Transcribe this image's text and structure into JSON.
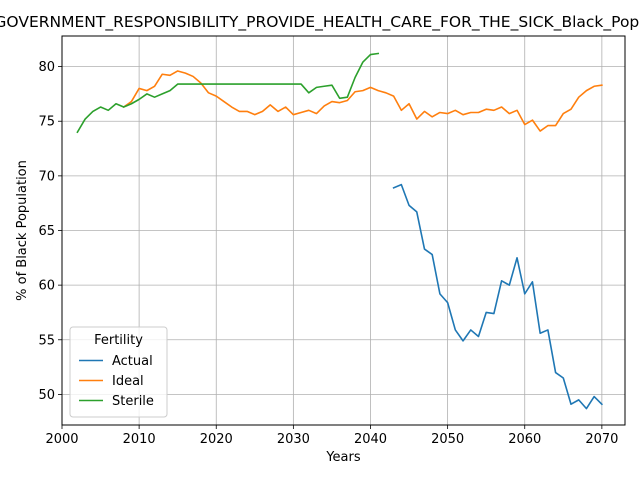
{
  "chart_data": {
    "type": "line",
    "title": "GOVERNMENT_RESPONSIBILITY_PROVIDE_HEALTH_CARE_FOR_THE_SICK_Black_Population",
    "xlabel": "Years",
    "ylabel": "% of Black Population",
    "xlim": [
      2000,
      2073
    ],
    "ylim": [
      47.2,
      82.8
    ],
    "xticks": [
      2000,
      2010,
      2020,
      2030,
      2040,
      2050,
      2060,
      2070
    ],
    "yticks": [
      50,
      55,
      60,
      65,
      70,
      75,
      80
    ],
    "grid": true,
    "legend": {
      "title": "Fertility",
      "placement": "lower-left"
    },
    "series": [
      {
        "name": "Actual",
        "color": "#1f77b4",
        "x": [
          2043,
          2044,
          2045,
          2046,
          2047,
          2048,
          2049,
          2050,
          2051,
          2052,
          2053,
          2054,
          2055,
          2056,
          2057,
          2058,
          2059,
          2060,
          2061,
          2062,
          2063,
          2064,
          2065,
          2066,
          2067,
          2068,
          2069,
          2070
        ],
        "y": [
          68.9,
          69.2,
          67.3,
          66.7,
          63.3,
          62.8,
          59.2,
          58.4,
          55.9,
          54.9,
          55.9,
          55.3,
          57.5,
          57.4,
          60.4,
          60.0,
          62.5,
          59.2,
          60.3,
          55.6,
          55.9,
          52.0,
          51.5,
          49.1,
          49.5,
          48.7,
          49.8,
          49.1
        ]
      },
      {
        "name": "Ideal",
        "color": "#ff7f0e",
        "x": [
          2008,
          2009,
          2010,
          2011,
          2012,
          2013,
          2014,
          2015,
          2016,
          2017,
          2018,
          2019,
          2020,
          2021,
          2022,
          2023,
          2024,
          2025,
          2026,
          2027,
          2028,
          2029,
          2030,
          2031,
          2032,
          2033,
          2034,
          2035,
          2036,
          2037,
          2038,
          2039,
          2040,
          2041,
          2042,
          2043,
          2044,
          2045,
          2046,
          2047,
          2048,
          2049,
          2050,
          2051,
          2052,
          2053,
          2054,
          2055,
          2056,
          2057,
          2058,
          2059,
          2060,
          2061,
          2062,
          2063,
          2064,
          2065,
          2066,
          2067,
          2068,
          2069,
          2070
        ],
        "y": [
          76.3,
          76.8,
          78.0,
          77.8,
          78.2,
          79.3,
          79.2,
          79.6,
          79.4,
          79.1,
          78.5,
          77.6,
          77.3,
          76.8,
          76.3,
          75.9,
          75.9,
          75.6,
          75.9,
          76.5,
          75.9,
          76.3,
          75.6,
          75.8,
          76.0,
          75.7,
          76.4,
          76.8,
          76.7,
          76.9,
          77.7,
          77.8,
          78.1,
          77.8,
          77.6,
          77.3,
          76.0,
          76.6,
          75.2,
          75.9,
          75.4,
          75.8,
          75.7,
          76.0,
          75.6,
          75.8,
          75.8,
          76.1,
          76.0,
          76.3,
          75.7,
          76.0,
          74.7,
          75.1,
          74.1,
          74.6,
          74.6,
          75.7,
          76.1,
          77.2,
          77.8,
          78.2,
          78.3
        ]
      },
      {
        "name": "Sterile",
        "color": "#2ca02c",
        "x": [
          2002,
          2003,
          2004,
          2005,
          2006,
          2007,
          2008,
          2009,
          2010,
          2011,
          2012,
          2013,
          2014,
          2015,
          2016,
          2017,
          2018,
          2019,
          2020,
          2021,
          2022,
          2023,
          2024,
          2025,
          2026,
          2027,
          2028,
          2029,
          2030,
          2031,
          2032,
          2033,
          2034,
          2035,
          2036,
          2037,
          2038,
          2039,
          2040,
          2041
        ],
        "y": [
          74.0,
          75.2,
          75.9,
          76.3,
          76.0,
          76.6,
          76.3,
          76.6,
          77.0,
          77.5,
          77.2,
          77.5,
          77.8,
          78.4,
          78.4,
          78.4,
          78.4,
          78.4,
          78.4,
          78.4,
          78.4,
          78.4,
          78.4,
          78.4,
          78.4,
          78.4,
          78.4,
          78.4,
          78.4,
          78.4,
          77.6,
          78.1,
          78.2,
          78.3,
          77.1,
          77.2,
          79.0,
          80.4,
          81.1,
          81.2
        ]
      }
    ]
  }
}
